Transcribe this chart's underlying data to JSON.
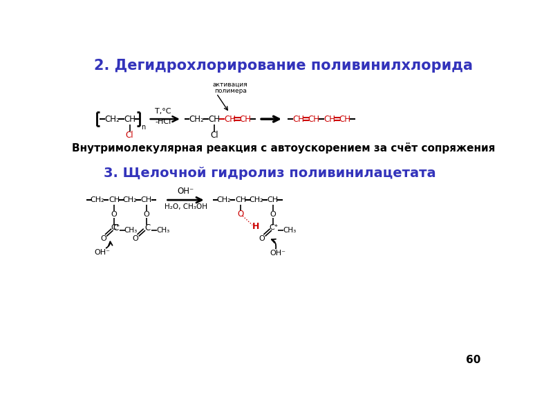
{
  "title1": "2. Дегидрохлорирование поливинилхлорида",
  "title2": "3. Щелочной гидролиз поливинилацетата",
  "subtitle1": "Внутримолекулярная реакция с автоускорением за счёт сопряжения",
  "page_num": "60",
  "bg_color": "#ffffff",
  "title_color": "#3333bb",
  "black": "#000000",
  "red": "#cc0000"
}
